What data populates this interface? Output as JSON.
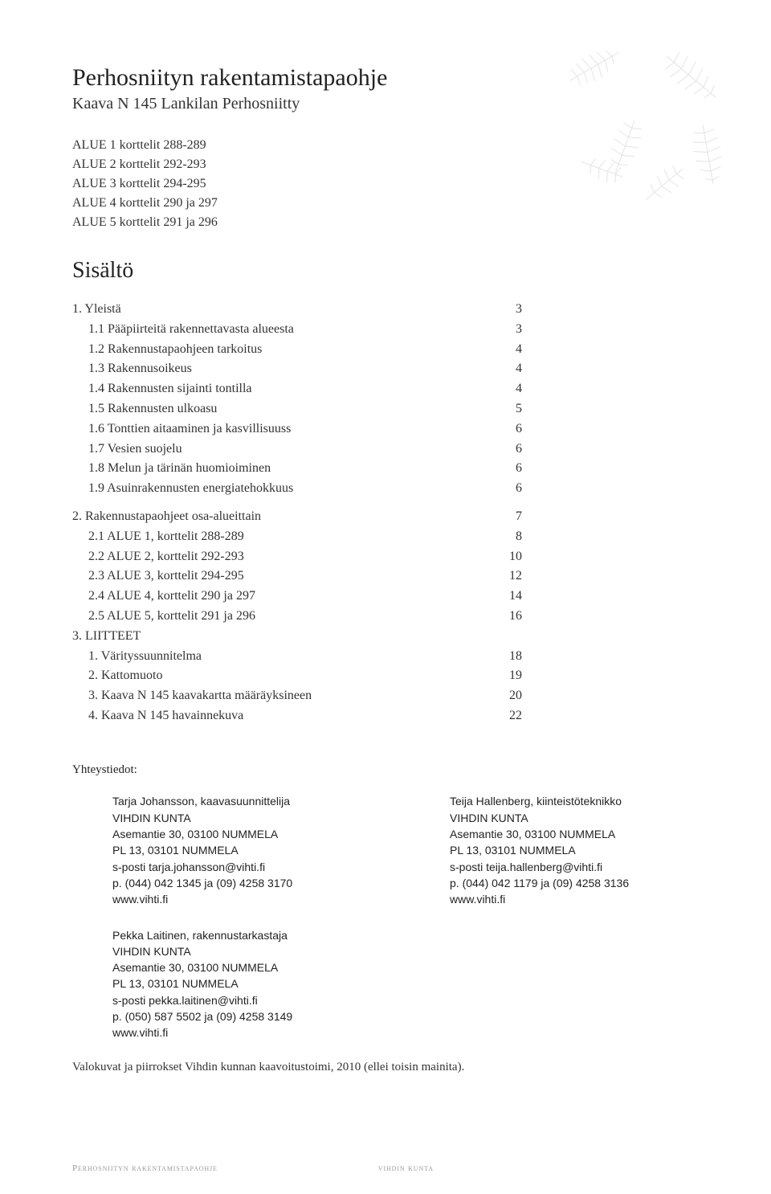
{
  "header": {
    "title": "Perhosniityn rakentamistapaohje",
    "subtitle": "Kaava N 145 Lankilan Perhosniitty"
  },
  "alue_lines": [
    "ALUE 1 korttelit 288-289",
    "ALUE 2 korttelit 292-293",
    "ALUE 3 korttelit 294-295",
    "ALUE 4 korttelit 290 ja 297",
    "ALUE 5 korttelit  291 ja 296"
  ],
  "toc_heading": "Sisältö",
  "toc": [
    {
      "label": "1. Yleistä",
      "page": "3",
      "indent": 0
    },
    {
      "label": "1.1 Pääpiirteitä rakennettavasta alueesta",
      "page": "3",
      "indent": 1
    },
    {
      "label": "1.2 Rakennustapaohjeen tarkoitus",
      "page": "4",
      "indent": 1
    },
    {
      "label": "1.3 Rakennusoikeus",
      "page": "4",
      "indent": 1
    },
    {
      "label": "1.4 Rakennusten sijainti tontilla",
      "page": "4",
      "indent": 1
    },
    {
      "label": "1.5 Rakennusten ulkoasu",
      "page": "5",
      "indent": 1
    },
    {
      "label": "1.6 Tonttien aitaaminen ja kasvillisuuss",
      "page": "6",
      "indent": 1
    },
    {
      "label": "1.7 Vesien suojelu",
      "page": "6",
      "indent": 1
    },
    {
      "label": "1.8 Melun ja tärinän huomioiminen",
      "page": "6",
      "indent": 1
    },
    {
      "label": "1.9 Asuinrakennusten energiatehokkuus",
      "page": "6",
      "indent": 1
    },
    {
      "gap": true
    },
    {
      "label": "2. Rakennustapaohjeet osa-alueittain",
      "page": "7",
      "indent": 0
    },
    {
      "label": "2.1 ALUE 1, korttelit 288-289",
      "page": "8",
      "indent": 1
    },
    {
      "label": "2.2 ALUE 2, korttelit 292-293",
      "page": "10",
      "indent": 1
    },
    {
      "label": "2.3 ALUE 3, korttelit 294-295",
      "page": "12",
      "indent": 1
    },
    {
      "label": "2.4 ALUE 4, korttelit 290 ja 297",
      "page": "14",
      "indent": 1
    },
    {
      "label": "2.5 ALUE 5, korttelit 291 ja 296",
      "page": "16",
      "indent": 1
    },
    {
      "label": "3. LIITTEET",
      "page": "",
      "indent": 0
    },
    {
      "label": "1. Värityssuunnitelma",
      "page": "18",
      "indent": 1
    },
    {
      "label": "2. Kattomuoto",
      "page": "19",
      "indent": 1
    },
    {
      "label": "3. Kaava N 145 kaavakartta määräyksineen",
      "page": "20",
      "indent": 1
    },
    {
      "label": "4. Kaava N 145 havainnekuva",
      "page": "22",
      "indent": 1
    }
  ],
  "contacts": {
    "heading": "Yhteystiedot:",
    "blocks": [
      {
        "lines": [
          "Tarja Johansson, kaavasuunnittelija",
          "VIHDIN KUNTA",
          "Asemantie 30, 03100 NUMMELA",
          "PL 13, 03101 NUMMELA",
          "s-posti tarja.johansson@vihti.fi",
          "p. (044) 042 1345 ja (09) 4258 3170",
          "www.vihti.fi"
        ]
      },
      {
        "lines": [
          "Teija Hallenberg, kiinteistöteknikko",
          "VIHDIN KUNTA",
          "Asemantie 30, 03100 NUMMELA",
          "PL 13, 03101 NUMMELA",
          "s-posti teija.hallenberg@vihti.fi",
          "p. (044) 042 1179 ja (09) 4258 3136",
          "www.vihti.fi"
        ]
      },
      {
        "lines": [
          "Pekka Laitinen, rakennustarkastaja",
          "VIHDIN KUNTA",
          "Asemantie 30, 03100 NUMMELA",
          "PL 13, 03101 NUMMELA",
          "s-posti pekka.laitinen@vihti.fi",
          "p. (050) 587 5502 ja (09) 4258 3149",
          "www.vihti.fi"
        ]
      }
    ]
  },
  "photo_credit": "Valokuvat ja piirrokset Vihdin kunnan kaavoitustoimi, 2010 (ellei toisin mainita).",
  "footer": {
    "left": "Perhosniityn rakentamistapaohje",
    "right": "vihdin kunta"
  },
  "colors": {
    "text": "#333333",
    "heading": "#222222",
    "footer": "#999999",
    "fern": "#bfbfbf",
    "background": "#ffffff"
  }
}
